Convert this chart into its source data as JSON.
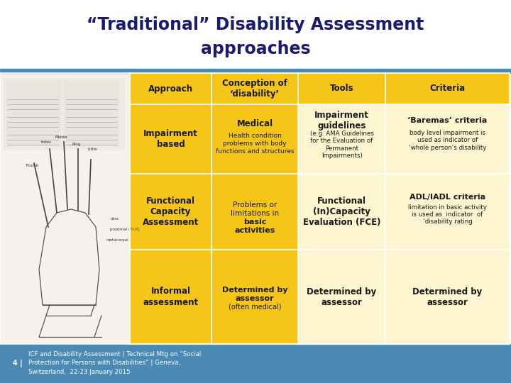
{
  "title_line1": "“Traditional” Disability Assessment",
  "title_line2": "approaches",
  "title_color": "#1a1a6e",
  "title_fontsize": 17,
  "background_color": "#ffffff",
  "header_bg": "#f5c518",
  "row_odd_bg": "#f5d060",
  "row_even_bg": "#f5d060",
  "criteria_odd_bg": "#fdf5d0",
  "criteria_even_bg": "#fdf5d0",
  "footer_bg": "#4a8ab5",
  "footer_text_color": "#ffffff",
  "footer_text": "ICF and Disability Assessment | Technical Mtg on “Social\nProtection for Persons with Disabilities” | Geneva,\nSwitzerland,  22-23 January 2015",
  "footer_num": "4 |",
  "stripe_color": "#4a8ab5",
  "col_headers": [
    "Approach",
    "Conception of\n‘disability’",
    "Tools",
    "Criteria"
  ],
  "img_bg": "#f0ede8"
}
